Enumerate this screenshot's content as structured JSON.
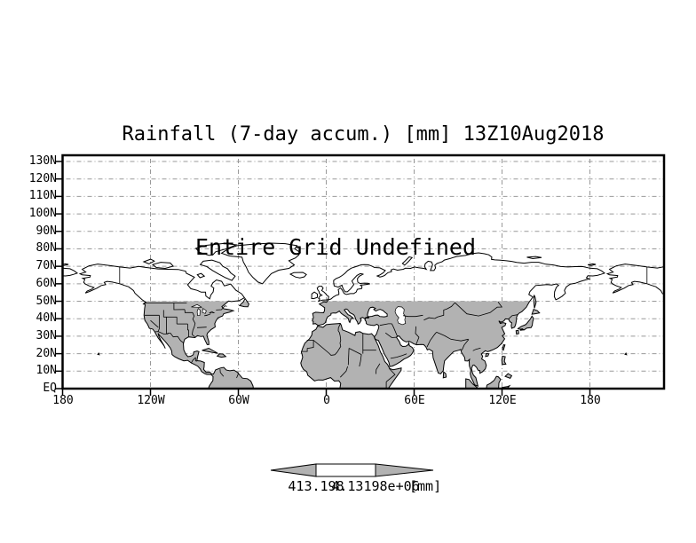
{
  "chart": {
    "title": "Rainfall (7-day accum.) [mm] 13Z10Aug2018",
    "annotation": "Entire Grid Undefined"
  },
  "axes": {
    "lat_labels": [
      "130N",
      "120N",
      "110N",
      "100N",
      "90N",
      "80N",
      "70N",
      "60N",
      "50N",
      "40N",
      "30N",
      "20N",
      "10N",
      "EQ"
    ],
    "lon_labels": [
      "180",
      "120W",
      "60W",
      "0",
      "60E",
      "120E",
      "180"
    ]
  },
  "colorbar": {
    "min_label": "413.198",
    "max_label": "4.13198e+06",
    "units": "[mm]"
  },
  "colors": {
    "background": "#ffffff",
    "land_fill": "#b2b2b2",
    "grid_line": "#999999",
    "line": "#000000",
    "water": "#ffffff"
  },
  "chart_data": {
    "type": "map",
    "title": "Rainfall (7-day accum.) [mm] 13Z10Aug2018",
    "variable": "Rainfall (7-day accum.)",
    "units": "mm",
    "valid_time": "13Z10Aug2018",
    "status_annotation": "Entire Grid Undefined",
    "projection": "equirectangular",
    "y_axis": {
      "type": "latitude",
      "ticks": [
        "130N",
        "120N",
        "110N",
        "100N",
        "90N",
        "80N",
        "70N",
        "60N",
        "50N",
        "40N",
        "30N",
        "20N",
        "10N",
        "EQ"
      ],
      "range": [
        "EQ",
        "130N"
      ],
      "tick_interval_deg": 10
    },
    "x_axis": {
      "type": "longitude",
      "ticks": [
        "180",
        "120W",
        "60W",
        "0",
        "60E",
        "120E",
        "180"
      ],
      "tick_interval_deg": 60
    },
    "grid": true,
    "grid_style": "gray dash-dot",
    "land_shading": "gray below 50N",
    "colorbar": {
      "min": 413.198,
      "max": 4131980,
      "min_label": "413.198",
      "max_label": "4.13198e+06",
      "units": "mm",
      "style": "double-arrow bar, gray arrows, white center"
    },
    "values": []
  }
}
